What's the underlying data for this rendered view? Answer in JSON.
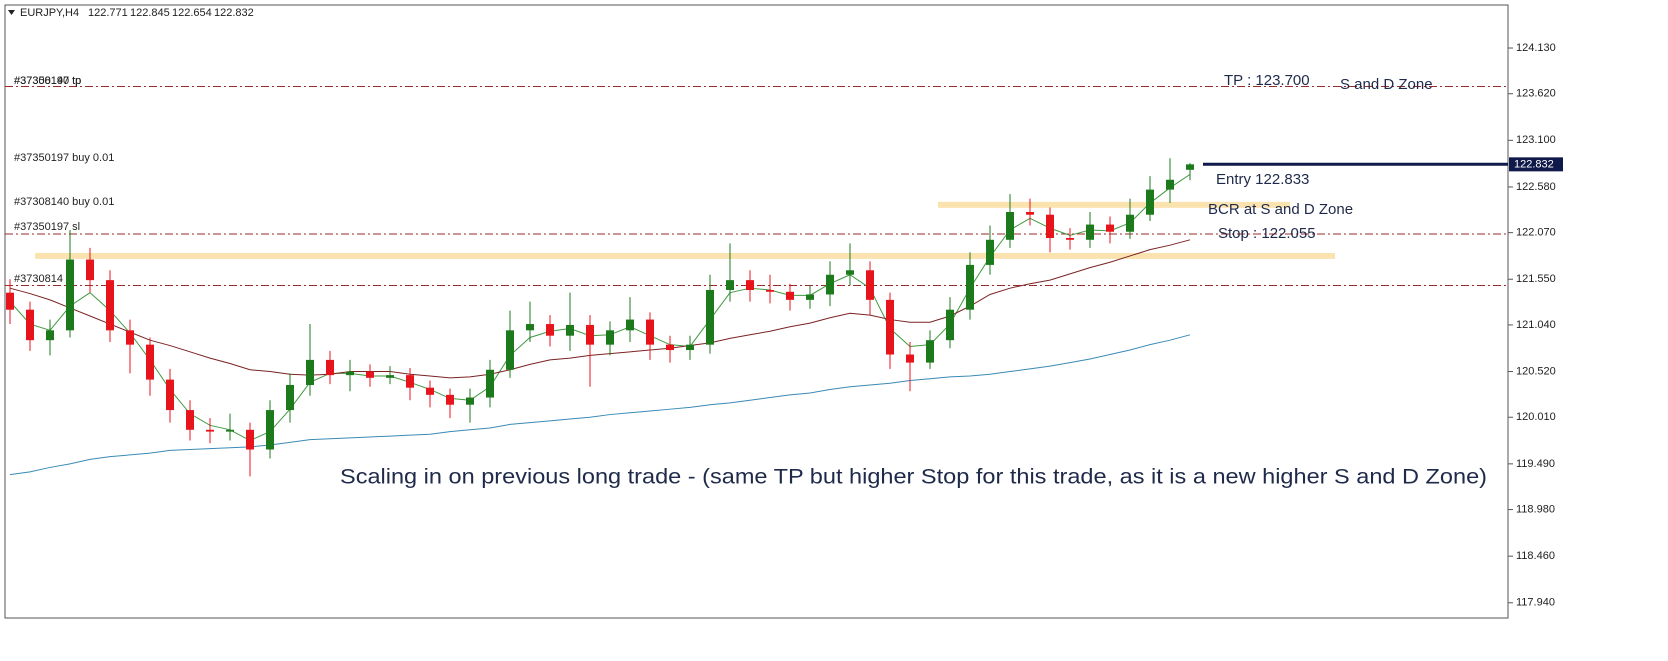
{
  "chart_data": {
    "type": "candlestick",
    "symbol": "EURJPY,H4",
    "open": [
      121.4,
      121.21,
      120.87,
      120.98,
      121.77,
      121.54,
      120.98,
      120.82,
      120.43,
      120.09,
      119.87,
      119.85,
      119.87,
      119.65,
      120.09,
      120.37,
      120.65,
      120.48,
      120.52,
      120.45,
      120.48,
      120.34,
      120.26,
      120.15,
      120.23,
      120.54,
      120.98,
      121.05,
      120.92,
      121.04,
      120.82,
      120.98,
      121.1,
      120.82,
      120.76,
      120.82,
      121.43,
      121.54,
      121.43,
      121.41,
      121.32,
      121.38,
      121.6,
      121.65,
      121.32,
      120.71,
      120.62,
      120.87,
      121.21,
      121.71,
      121.99,
      122.3,
      122.27,
      122.01,
      121.99,
      122.16,
      122.08,
      122.27,
      122.55,
      122.771
    ],
    "high": [
      121.55,
      121.3,
      121.1,
      122.1,
      121.9,
      121.65,
      121.1,
      120.9,
      120.55,
      120.2,
      120.0,
      120.05,
      119.95,
      120.2,
      120.5,
      121.05,
      120.75,
      120.65,
      120.6,
      120.58,
      120.56,
      120.42,
      120.33,
      120.33,
      120.65,
      121.2,
      121.3,
      121.15,
      121.4,
      121.15,
      121.08,
      121.35,
      121.18,
      120.92,
      120.92,
      121.6,
      121.95,
      121.65,
      121.6,
      121.5,
      121.48,
      121.75,
      121.95,
      121.75,
      121.4,
      120.85,
      120.98,
      121.35,
      121.85,
      122.15,
      122.5,
      122.45,
      122.35,
      122.12,
      122.3,
      122.25,
      122.45,
      122.7,
      122.9,
      122.845
    ],
    "low": [
      121.05,
      120.75,
      120.7,
      120.9,
      121.4,
      120.85,
      120.5,
      120.25,
      119.95,
      119.75,
      119.72,
      119.75,
      119.35,
      119.55,
      119.95,
      120.25,
      120.38,
      120.3,
      120.35,
      120.38,
      120.2,
      120.12,
      120.0,
      119.95,
      120.12,
      120.45,
      120.85,
      120.8,
      120.75,
      120.35,
      120.7,
      120.85,
      120.65,
      120.62,
      120.65,
      120.72,
      121.3,
      121.3,
      121.28,
      121.2,
      121.22,
      121.25,
      121.48,
      121.15,
      120.55,
      120.3,
      120.55,
      120.78,
      121.1,
      121.6,
      121.9,
      122.15,
      121.85,
      121.88,
      121.9,
      121.95,
      122.0,
      122.2,
      122.4,
      122.654
    ],
    "close": [
      121.21,
      120.87,
      120.98,
      121.77,
      121.54,
      120.98,
      120.82,
      120.43,
      120.09,
      119.87,
      119.85,
      119.87,
      119.65,
      120.09,
      120.37,
      120.65,
      120.48,
      120.52,
      120.45,
      120.48,
      120.34,
      120.26,
      120.15,
      120.23,
      120.54,
      120.98,
      121.05,
      120.92,
      121.04,
      120.82,
      120.98,
      121.1,
      120.82,
      120.76,
      120.82,
      121.43,
      121.54,
      121.43,
      121.41,
      121.32,
      121.38,
      121.6,
      121.65,
      121.32,
      120.71,
      120.62,
      120.87,
      121.21,
      121.71,
      121.99,
      122.3,
      122.27,
      122.01,
      121.99,
      122.16,
      122.08,
      122.27,
      122.55,
      122.66,
      122.832
    ],
    "up_color": "#1c7a1c",
    "down_color": "#e8141c",
    "series": [
      {
        "color": "#3f9a3f",
        "values": [
          121.3,
          121.05,
          120.98,
          121.25,
          121.4,
          121.2,
          120.95,
          120.65,
          120.32,
          120.05,
          119.92,
          119.87,
          119.75,
          119.85,
          120.1,
          120.4,
          120.5,
          120.5,
          120.47,
          120.47,
          120.4,
          120.32,
          120.22,
          120.2,
          120.35,
          120.7,
          120.9,
          120.97,
          121.0,
          120.92,
          120.93,
          121.02,
          120.92,
          120.82,
          120.8,
          121.1,
          121.4,
          121.45,
          121.43,
          121.37,
          121.37,
          121.5,
          121.6,
          121.45,
          121.0,
          120.8,
          120.82,
          121.05,
          121.45,
          121.8,
          122.1,
          122.23,
          122.12,
          122.04,
          122.1,
          122.09,
          122.18,
          122.4,
          122.57,
          122.72
        ]
      },
      {
        "color": "#7b2222",
        "values": [
          121.45,
          121.39,
          121.32,
          121.23,
          121.14,
          121.05,
          120.96,
          120.87,
          120.81,
          120.74,
          120.67,
          120.61,
          120.54,
          120.52,
          120.49,
          120.48,
          120.49,
          120.52,
          120.52,
          120.52,
          120.49,
          120.47,
          120.45,
          120.46,
          120.49,
          120.54,
          120.6,
          120.65,
          120.67,
          120.7,
          120.72,
          120.74,
          120.76,
          120.78,
          120.81,
          120.84,
          120.89,
          120.93,
          120.97,
          121.02,
          121.06,
          121.12,
          121.17,
          121.15,
          121.1,
          121.07,
          121.07,
          121.14,
          121.25,
          121.38,
          121.45,
          121.5,
          121.54,
          121.61,
          121.68,
          121.74,
          121.81,
          121.88,
          121.93,
          121.99
        ]
      },
      {
        "color": "#3a8ab5",
        "values": [
          119.37,
          119.4,
          119.45,
          119.49,
          119.54,
          119.57,
          119.59,
          119.61,
          119.64,
          119.65,
          119.66,
          119.67,
          119.68,
          119.7,
          119.73,
          119.76,
          119.77,
          119.78,
          119.79,
          119.8,
          119.81,
          119.82,
          119.85,
          119.87,
          119.89,
          119.93,
          119.95,
          119.97,
          119.99,
          120.01,
          120.04,
          120.06,
          120.08,
          120.1,
          120.12,
          120.15,
          120.17,
          120.2,
          120.23,
          120.26,
          120.28,
          120.32,
          120.35,
          120.37,
          120.39,
          120.42,
          120.44,
          120.46,
          120.47,
          120.49,
          120.52,
          120.55,
          120.58,
          120.62,
          120.66,
          120.71,
          120.76,
          120.82,
          120.87,
          120.93
        ]
      }
    ],
    "ylim": [
      117.77,
      124.61
    ],
    "yticks": [
      {
        "value": 124.13,
        "label": "124.130"
      },
      {
        "value": 123.62,
        "label": "123.620"
      },
      {
        "value": 123.1,
        "label": "123.100"
      },
      {
        "value": 122.58,
        "label": "122.580"
      },
      {
        "value": 122.07,
        "label": "122.070"
      },
      {
        "value": 121.55,
        "label": "121.550"
      },
      {
        "value": 121.04,
        "label": "121.040"
      },
      {
        "value": 120.52,
        "label": "120.520"
      },
      {
        "value": 120.01,
        "label": "120.010"
      },
      {
        "value": 119.49,
        "label": "119.490"
      },
      {
        "value": 118.98,
        "label": "118.980"
      },
      {
        "value": 118.46,
        "label": "118.460"
      },
      {
        "value": 117.94,
        "label": "117.940"
      }
    ],
    "levels": [
      123.7,
      122.055,
      121.48
    ],
    "level_color": "#9b2a2a",
    "entry_level": 122.833,
    "entry_color": "#0f1a4a",
    "zones": [
      122.38,
      121.81
    ],
    "zone_color": "#fbe3b0",
    "order_labels": [
      "#37308140 tp",
      "#37350197 tp",
      "#37350197 buy 0.01",
      "#37308140 buy 0.01",
      "#37350197 sl",
      "#3730814"
    ],
    "annotations": [
      "TP : 123.700",
      "S and D Zone",
      "Entry 122.833",
      "BCR at S and D Zone",
      "Stop : 122.055",
      "Scaling in on previous long trade - (same TP but higher Stop for this trade, as it is a new higher S and D Zone)"
    ]
  }
}
